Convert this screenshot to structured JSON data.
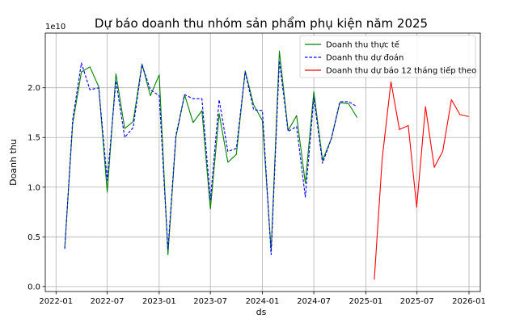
{
  "chart_data": {
    "type": "line",
    "title": "Dự báo doanh thu nhóm sản phẩm phụ kiện năm 2025",
    "xlabel": "ds",
    "ylabel": "Doanh thu",
    "y_offset_text": "1e10",
    "ylim": [
      -0.05,
      2.55
    ],
    "y_ticks": [
      0.0,
      0.5,
      1.0,
      1.5,
      2.0
    ],
    "y_tick_labels": [
      "0.0",
      "0.5",
      "1.0",
      "1.5",
      "2.0"
    ],
    "xlim": [
      "2021-11-24",
      "2026-02-10"
    ],
    "x_ticks": [
      "2022-01-01",
      "2022-07-01",
      "2023-01-01",
      "2023-07-01",
      "2024-01-01",
      "2024-07-01",
      "2025-01-01",
      "2025-07-01",
      "2026-01-01"
    ],
    "x_tick_labels": [
      "2022-01",
      "2022-07",
      "2023-01",
      "2023-07",
      "2024-01",
      "2024-07",
      "2025-01",
      "2025-07",
      "2026-01"
    ],
    "grid": true,
    "legend_position": "top-right",
    "series": [
      {
        "name": "Doanh thu thực tế",
        "color": "#008000",
        "style": "solid",
        "x": [
          "2022-02-01",
          "2022-03-01",
          "2022-04-01",
          "2022-05-01",
          "2022-06-01",
          "2022-07-01",
          "2022-08-01",
          "2022-09-01",
          "2022-10-01",
          "2022-11-01",
          "2022-12-01",
          "2023-01-01",
          "2023-02-01",
          "2023-03-01",
          "2023-04-01",
          "2023-05-01",
          "2023-06-01",
          "2023-07-01",
          "2023-08-01",
          "2023-09-01",
          "2023-10-01",
          "2023-11-01",
          "2023-12-01",
          "2024-01-01",
          "2024-02-01",
          "2024-03-01",
          "2024-04-01",
          "2024-05-01",
          "2024-06-01",
          "2024-07-01",
          "2024-08-01",
          "2024-09-01",
          "2024-10-01",
          "2024-11-01",
          "2024-12-01",
          "2025-01-01"
        ],
        "y": [
          0.39,
          1.64,
          2.16,
          2.21,
          2.01,
          0.95,
          2.14,
          1.59,
          1.66,
          2.24,
          1.92,
          2.13,
          0.32,
          1.5,
          1.93,
          1.65,
          1.77,
          0.78,
          1.74,
          1.25,
          1.33,
          2.17,
          1.83,
          1.67,
          0.36,
          2.37,
          1.57,
          1.72,
          1.04,
          1.96,
          1.27,
          1.49,
          1.85,
          1.84,
          1.7,
          null
        ]
      },
      {
        "name": "Doanh thu dự đoán",
        "color": "#0000ff",
        "style": "dashed",
        "x": [
          "2022-02-01",
          "2022-03-01",
          "2022-04-01",
          "2022-05-01",
          "2022-06-01",
          "2022-07-01",
          "2022-08-01",
          "2022-09-01",
          "2022-10-01",
          "2022-11-01",
          "2022-12-01",
          "2023-01-01",
          "2023-02-01",
          "2023-03-01",
          "2023-04-01",
          "2023-05-01",
          "2023-06-01",
          "2023-07-01",
          "2023-08-01",
          "2023-09-01",
          "2023-10-01",
          "2023-11-01",
          "2023-12-01",
          "2024-01-01",
          "2024-02-01",
          "2024-03-01",
          "2024-04-01",
          "2024-05-01",
          "2024-06-01",
          "2024-07-01",
          "2024-08-01",
          "2024-09-01",
          "2024-10-01",
          "2024-11-01",
          "2024-12-01"
        ],
        "y": [
          0.38,
          1.68,
          2.25,
          1.98,
          2.0,
          1.07,
          2.07,
          1.5,
          1.6,
          2.23,
          1.98,
          1.92,
          0.37,
          1.52,
          1.93,
          1.89,
          1.89,
          0.87,
          1.88,
          1.36,
          1.39,
          2.16,
          1.78,
          1.77,
          0.32,
          2.27,
          1.56,
          1.61,
          0.9,
          1.9,
          1.24,
          1.49,
          1.86,
          1.86,
          1.81
        ]
      },
      {
        "name": "Doanh thu dự báo 12 tháng tiếp theo",
        "color": "#ff0000",
        "style": "solid",
        "x": [
          "2025-01-31",
          "2025-02-28",
          "2025-03-31",
          "2025-04-30",
          "2025-05-31",
          "2025-06-30",
          "2025-07-31",
          "2025-08-31",
          "2025-09-30",
          "2025-10-31",
          "2025-11-30",
          "2025-12-31"
        ],
        "y": [
          0.07,
          1.29,
          2.06,
          1.58,
          1.62,
          0.8,
          1.81,
          1.2,
          1.36,
          1.88,
          1.73,
          1.71
        ]
      }
    ]
  }
}
